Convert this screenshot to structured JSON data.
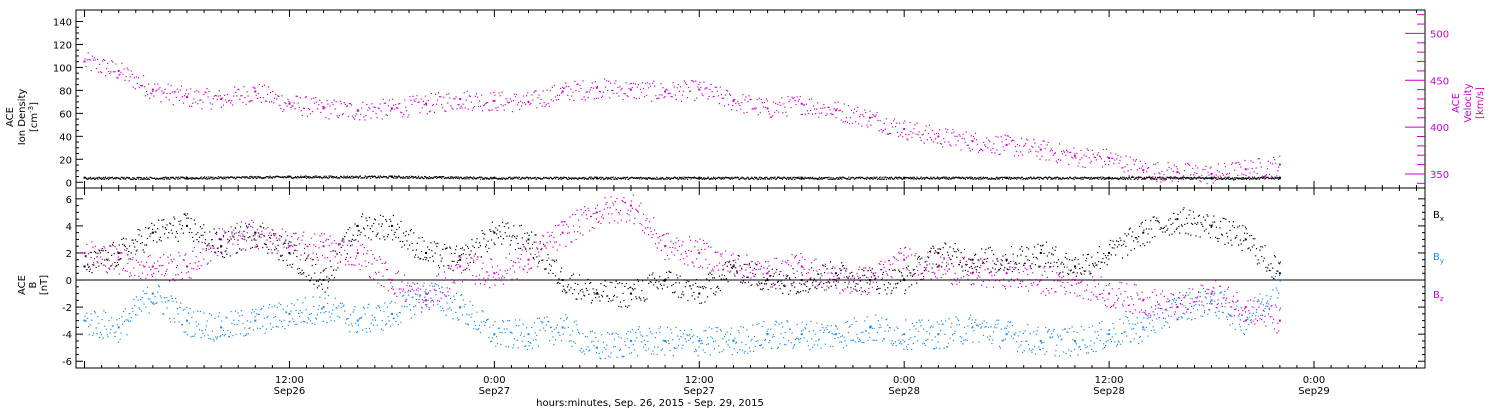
{
  "footer_label": "hours:minutes, Sep. 26, 2015 - Sep. 29, 2015",
  "x_ticks": [
    {
      "time": "12:00",
      "date": "Sep26",
      "hours": 12
    },
    {
      "time": "0:00",
      "date": "Sep27",
      "hours": 24
    },
    {
      "time": "12:00",
      "date": "Sep27",
      "hours": 36
    },
    {
      "time": "0:00",
      "date": "Sep28",
      "hours": 48
    },
    {
      "time": "12:00",
      "date": "Sep28",
      "hours": 60
    },
    {
      "time": "0:00",
      "date": "Sep29",
      "hours": 72
    }
  ],
  "chart_data": [
    {
      "type": "scatter",
      "panel": "top",
      "xlim_hours": [
        -0.5,
        78.5
      ],
      "left_axis": {
        "label_line1": "ACE",
        "label_line2": "Ion Density",
        "unit_base": "[cm",
        "unit_sup": "-3",
        "unit_end": "]",
        "ylim": [
          -5,
          150
        ],
        "ticks": [
          0,
          20,
          40,
          60,
          80,
          100,
          120,
          140
        ],
        "color": "#000000"
      },
      "right_axis": {
        "label_line1": "ACE",
        "label_line2": "Velocity",
        "unit": "[km/s]",
        "ylim": [
          335,
          525
        ],
        "ticks": [
          350,
          400,
          450,
          500
        ],
        "color": "#cc00cc"
      },
      "series": [
        {
          "axis": "right",
          "color": "#cc00cc",
          "x_hours": [
            0,
            2,
            4,
            6,
            8,
            10,
            12,
            14,
            16,
            18,
            20,
            22,
            24,
            26,
            28,
            30,
            32,
            34,
            36,
            38,
            40,
            42,
            44,
            46,
            48,
            50,
            52,
            54,
            56,
            58,
            60,
            62,
            64,
            66,
            68,
            70
          ],
          "values": [
            470,
            460,
            440,
            432,
            430,
            438,
            425,
            420,
            418,
            420,
            425,
            430,
            428,
            427,
            438,
            442,
            440,
            438,
            440,
            428,
            420,
            425,
            418,
            410,
            398,
            390,
            385,
            381,
            376,
            369,
            367,
            354,
            352,
            350,
            355,
            360
          ]
        },
        {
          "axis": "left",
          "color": "#000000",
          "x_hours": [
            0,
            6,
            12,
            18,
            24,
            30,
            36,
            42,
            48,
            54,
            60,
            66,
            70
          ],
          "values": [
            4,
            4,
            5,
            5,
            4,
            4,
            4,
            4,
            4,
            4,
            4,
            4,
            4
          ]
        }
      ]
    },
    {
      "type": "scatter",
      "panel": "bottom",
      "xlim_hours": [
        -0.5,
        78.5
      ],
      "y_axis": {
        "label_line1": "ACE",
        "label_line2": "B",
        "unit": "[nT]",
        "ylim": [
          -6.5,
          6.8
        ],
        "ticks": [
          -6,
          -4,
          -2,
          0,
          2,
          4,
          6
        ]
      },
      "series": [
        {
          "name": "B",
          "subscript": "x",
          "color": "#000000",
          "x_hours": [
            0,
            2,
            4,
            6,
            8,
            10,
            12,
            14,
            16,
            18,
            20,
            22,
            24,
            26,
            28,
            30,
            32,
            34,
            36,
            38,
            40,
            42,
            44,
            46,
            48,
            50,
            52,
            54,
            56,
            58,
            60,
            62,
            64,
            66,
            68,
            70
          ],
          "values": [
            1,
            2,
            3.5,
            4,
            2.5,
            3.5,
            2,
            0,
            4,
            4,
            2,
            1.5,
            3.5,
            3,
            0,
            -1,
            -1,
            0,
            -1,
            1,
            0,
            0,
            0.5,
            0,
            0,
            2,
            1.5,
            1.5,
            2,
            1,
            2,
            3.5,
            4.5,
            4,
            3,
            0.5
          ]
        },
        {
          "name": "B",
          "subscript": "y",
          "color": "#1a8ae6",
          "x_hours": [
            0,
            2,
            4,
            6,
            8,
            10,
            12,
            14,
            16,
            18,
            20,
            22,
            24,
            26,
            28,
            30,
            32,
            34,
            36,
            38,
            40,
            42,
            44,
            46,
            48,
            50,
            52,
            54,
            56,
            58,
            60,
            62,
            64,
            66,
            68,
            70
          ],
          "values": [
            -3,
            -3.5,
            -1,
            -3,
            -3.5,
            -3,
            -2.5,
            -2,
            -3,
            -2.5,
            -1,
            -2,
            -4,
            -4,
            -3.5,
            -5,
            -4.5,
            -4.5,
            -4.5,
            -4.5,
            -4,
            -4,
            -4,
            -3.5,
            -4,
            -4,
            -3.5,
            -4,
            -4.5,
            -4.5,
            -4,
            -3.5,
            -2,
            -1.5,
            -3,
            0
          ]
        },
        {
          "name": "B",
          "subscript": "z",
          "color": "#cc00cc",
          "x_hours": [
            0,
            2,
            4,
            6,
            8,
            10,
            12,
            14,
            16,
            18,
            20,
            22,
            24,
            26,
            28,
            30,
            32,
            34,
            36,
            38,
            40,
            42,
            44,
            46,
            48,
            50,
            52,
            54,
            56,
            58,
            60,
            62,
            64,
            66,
            68,
            70
          ],
          "values": [
            2,
            1.5,
            1,
            1,
            3,
            3.5,
            2.5,
            2.5,
            2,
            0,
            -1.5,
            1,
            0.5,
            1.5,
            3.5,
            5,
            5.5,
            2.5,
            2,
            1,
            0.5,
            1,
            0,
            0,
            1.5,
            1,
            0.5,
            0.5,
            0,
            0,
            -1,
            -1.5,
            -2,
            -1,
            -2,
            -3
          ]
        }
      ]
    }
  ]
}
